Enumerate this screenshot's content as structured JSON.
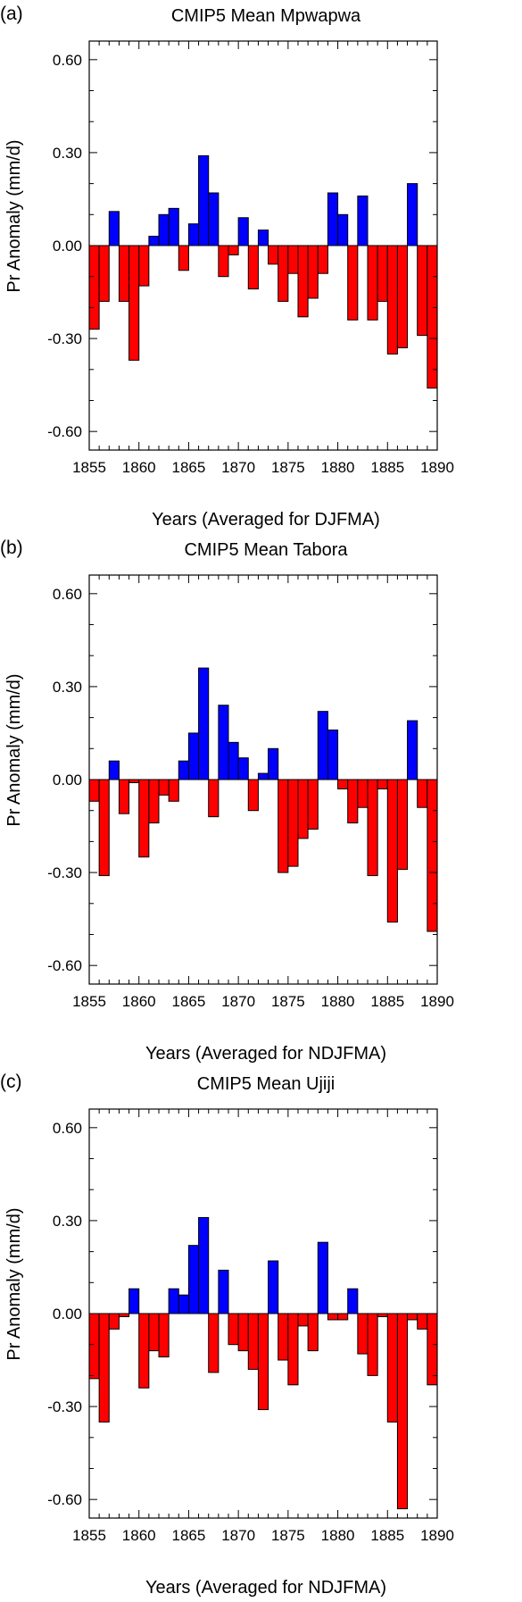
{
  "chart_data": [
    {
      "type": "bar",
      "panel_label": "(a)",
      "title": "CMIP5 Mean Mpwapwa",
      "xlabel": "Years (Averaged for DJFMA)",
      "ylabel": "Pr Anomaly (mm/d)",
      "xlim": [
        1855,
        1890
      ],
      "ylim": [
        -0.66,
        0.66
      ],
      "x_ticks": [
        "1855",
        "1860",
        "1865",
        "1870",
        "1875",
        "1880",
        "1885",
        "1890"
      ],
      "y_ticks": [
        "0.60",
        "0.30",
        "0.00",
        "-0.30",
        "-0.60"
      ],
      "x": [
        1856,
        1857,
        1858,
        1859,
        1860,
        1861,
        1862,
        1863,
        1864,
        1865,
        1866,
        1867,
        1868,
        1869,
        1870,
        1871,
        1872,
        1873,
        1874,
        1875,
        1876,
        1877,
        1878,
        1879,
        1880,
        1881,
        1882,
        1883,
        1884,
        1885,
        1886,
        1887,
        1888,
        1889,
        1890
      ],
      "values": [
        -0.27,
        -0.18,
        0.11,
        -0.18,
        -0.37,
        -0.13,
        0.03,
        0.1,
        0.12,
        -0.08,
        0.07,
        0.29,
        0.17,
        -0.1,
        -0.03,
        0.09,
        -0.14,
        0.05,
        -0.06,
        -0.18,
        -0.09,
        -0.23,
        -0.17,
        -0.09,
        0.17,
        0.1,
        -0.24,
        0.16,
        -0.24,
        -0.18,
        -0.35,
        -0.33,
        0.2,
        -0.29,
        -0.46
      ],
      "positive_color": "#0000ff",
      "negative_color": "#ff0000",
      "grid": false
    },
    {
      "type": "bar",
      "panel_label": "(b)",
      "title": "CMIP5 Mean Tabora",
      "xlabel": "Years (Averaged for NDJFMA)",
      "ylabel": "Pr Anomaly (mm/d)",
      "xlim": [
        1855,
        1890
      ],
      "ylim": [
        -0.66,
        0.66
      ],
      "x_ticks": [
        "1855",
        "1860",
        "1865",
        "1870",
        "1875",
        "1880",
        "1885",
        "1890"
      ],
      "y_ticks": [
        "0.60",
        "0.30",
        "0.00",
        "-0.30",
        "-0.60"
      ],
      "x": [
        1856,
        1857,
        1858,
        1859,
        1860,
        1861,
        1862,
        1863,
        1864,
        1865,
        1866,
        1867,
        1868,
        1869,
        1870,
        1871,
        1872,
        1873,
        1874,
        1875,
        1876,
        1877,
        1878,
        1879,
        1880,
        1881,
        1882,
        1883,
        1884,
        1885,
        1886,
        1887,
        1888,
        1889,
        1890
      ],
      "values": [
        -0.07,
        -0.31,
        0.06,
        -0.11,
        -0.01,
        -0.25,
        -0.14,
        -0.05,
        -0.07,
        0.06,
        0.15,
        0.36,
        -0.12,
        0.24,
        0.12,
        0.07,
        -0.1,
        0.02,
        0.1,
        -0.3,
        -0.28,
        -0.19,
        -0.16,
        0.22,
        0.16,
        -0.03,
        -0.14,
        -0.09,
        -0.31,
        -0.03,
        -0.46,
        -0.29,
        0.19,
        -0.09,
        -0.49
      ],
      "positive_color": "#0000ff",
      "negative_color": "#ff0000",
      "grid": false
    },
    {
      "type": "bar",
      "panel_label": "(c)",
      "title": "CMIP5 Mean Ujiji",
      "xlabel": "Years (Averaged for NDJFMA)",
      "ylabel": "Pr Anomaly (mm/d)",
      "xlim": [
        1855,
        1890
      ],
      "ylim": [
        -0.66,
        0.66
      ],
      "x_ticks": [
        "1855",
        "1860",
        "1865",
        "1870",
        "1875",
        "1880",
        "1885",
        "1890"
      ],
      "y_ticks": [
        "0.60",
        "0.30",
        "0.00",
        "-0.30",
        "-0.60"
      ],
      "x": [
        1856,
        1857,
        1858,
        1859,
        1860,
        1861,
        1862,
        1863,
        1864,
        1865,
        1866,
        1867,
        1868,
        1869,
        1870,
        1871,
        1872,
        1873,
        1874,
        1875,
        1876,
        1877,
        1878,
        1879,
        1880,
        1881,
        1882,
        1883,
        1884,
        1885,
        1886,
        1887,
        1888,
        1889,
        1890
      ],
      "values": [
        -0.21,
        -0.35,
        -0.05,
        -0.01,
        0.08,
        -0.24,
        -0.12,
        -0.14,
        0.08,
        0.06,
        0.22,
        0.31,
        -0.19,
        0.14,
        -0.1,
        -0.12,
        -0.18,
        -0.31,
        0.17,
        -0.15,
        -0.23,
        -0.04,
        -0.12,
        0.23,
        -0.02,
        -0.02,
        0.08,
        -0.13,
        -0.2,
        -0.01,
        -0.35,
        -0.63,
        -0.02,
        -0.05,
        -0.23
      ],
      "positive_color": "#0000ff",
      "negative_color": "#ff0000",
      "grid": false
    }
  ]
}
